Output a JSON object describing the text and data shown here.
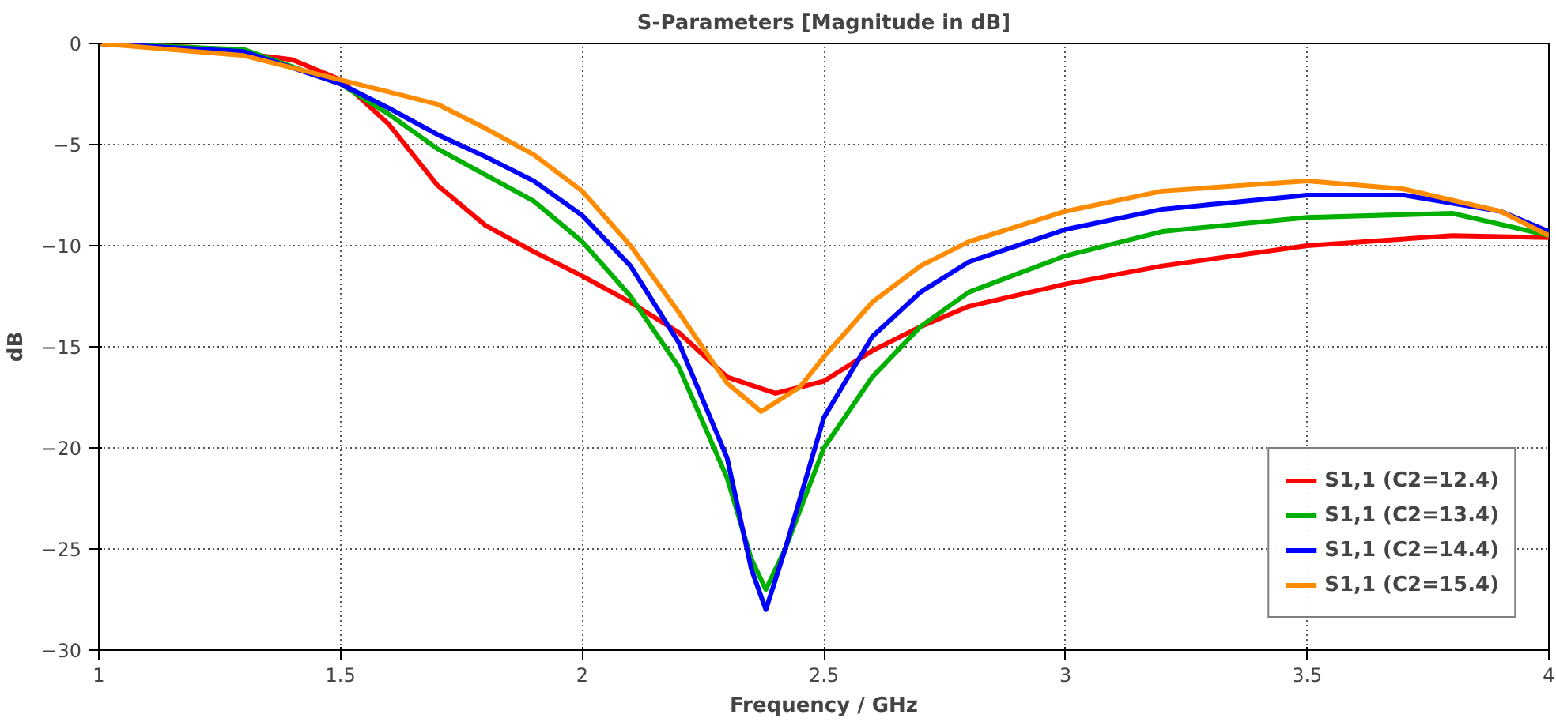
{
  "chart_data": {
    "type": "line",
    "title": "S-Parameters [Magnitude in dB]",
    "xlabel": "Frequency / GHz",
    "ylabel": "dB",
    "xlim": [
      1,
      4
    ],
    "xticks": [
      1,
      1.5,
      2,
      2.5,
      3,
      3.5,
      4
    ],
    "ylim": [
      -30,
      0
    ],
    "yticks": [
      0,
      -5,
      -10,
      -15,
      -20,
      -25,
      -30
    ],
    "grid": true,
    "legend": "bottom right",
    "series": [
      {
        "name": "S1,1 (C2=12.4)",
        "color": "#ff0000",
        "x": [
          1.0,
          1.2,
          1.4,
          1.5,
          1.6,
          1.7,
          1.8,
          1.9,
          2.0,
          2.1,
          2.2,
          2.3,
          2.4,
          2.5,
          2.6,
          2.7,
          2.8,
          3.0,
          3.2,
          3.5,
          3.8,
          4.0
        ],
        "values": [
          0,
          -0.2,
          -0.8,
          -1.8,
          -4,
          -7,
          -9,
          -10.3,
          -11.5,
          -12.8,
          -14.3,
          -16.5,
          -17.3,
          -16.7,
          -15.2,
          -14,
          -13,
          -11.9,
          -11,
          -10,
          -9.5,
          -9.6
        ]
      },
      {
        "name": "S1,1 (C2=13.4)",
        "color": "#00b000",
        "x": [
          1.0,
          1.3,
          1.5,
          1.6,
          1.7,
          1.8,
          1.9,
          2.0,
          2.1,
          2.2,
          2.3,
          2.35,
          2.38,
          2.42,
          2.5,
          2.6,
          2.7,
          2.8,
          3.0,
          3.2,
          3.5,
          3.8,
          4.0
        ],
        "values": [
          0,
          -0.3,
          -2,
          -3.5,
          -5.2,
          -6.5,
          -7.8,
          -9.8,
          -12.5,
          -16,
          -21.5,
          -25.5,
          -27,
          -25,
          -20,
          -16.5,
          -14,
          -12.3,
          -10.5,
          -9.3,
          -8.6,
          -8.4,
          -9.5
        ]
      },
      {
        "name": "S1,1 (C2=14.4)",
        "color": "#0000ff",
        "x": [
          1.0,
          1.3,
          1.5,
          1.6,
          1.7,
          1.8,
          1.9,
          2.0,
          2.1,
          2.2,
          2.3,
          2.35,
          2.38,
          2.42,
          2.5,
          2.6,
          2.7,
          2.8,
          3.0,
          3.2,
          3.5,
          3.7,
          3.9,
          4.0
        ],
        "values": [
          0,
          -0.4,
          -2,
          -3.2,
          -4.5,
          -5.6,
          -6.8,
          -8.5,
          -11,
          -14.8,
          -20.5,
          -26,
          -28,
          -25,
          -18.5,
          -14.5,
          -12.3,
          -10.8,
          -9.2,
          -8.2,
          -7.5,
          -7.5,
          -8.3,
          -9.3
        ]
      },
      {
        "name": "S1,1 (C2=15.4)",
        "color": "#ff8c00",
        "x": [
          1.0,
          1.3,
          1.5,
          1.6,
          1.7,
          1.8,
          1.9,
          2.0,
          2.1,
          2.2,
          2.3,
          2.37,
          2.45,
          2.5,
          2.6,
          2.7,
          2.8,
          3.0,
          3.2,
          3.5,
          3.7,
          3.9,
          4.0
        ],
        "values": [
          0,
          -0.6,
          -1.8,
          -2.4,
          -3,
          -4.2,
          -5.5,
          -7.3,
          -10,
          -13.3,
          -16.8,
          -18.2,
          -17,
          -15.5,
          -12.8,
          -11,
          -9.8,
          -8.3,
          -7.3,
          -6.8,
          -7.2,
          -8.3,
          -9.5
        ]
      }
    ]
  }
}
